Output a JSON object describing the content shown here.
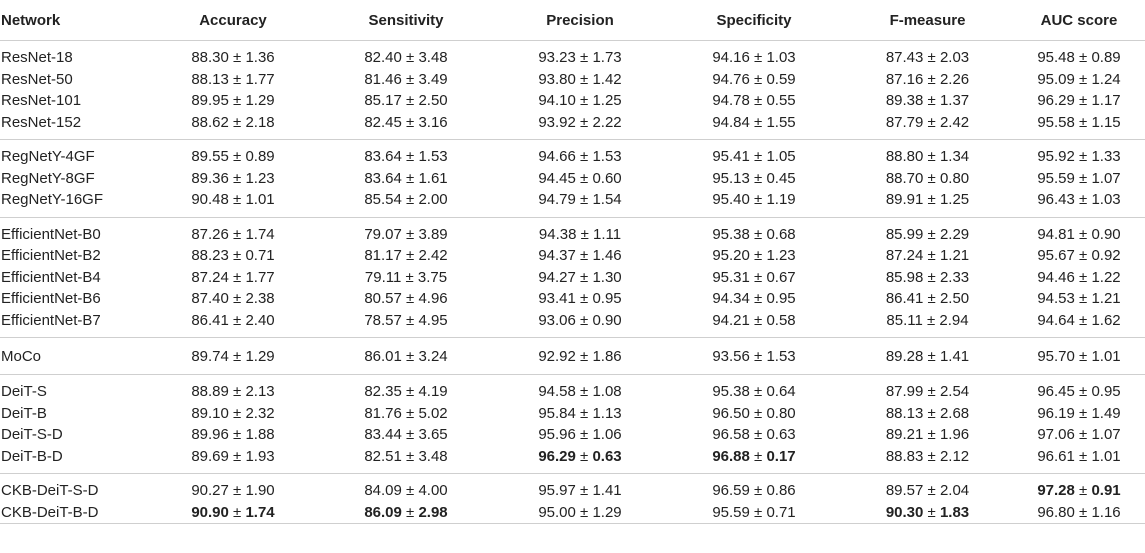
{
  "headers": [
    "Network",
    "Accuracy",
    "Sensitivity",
    "Precision",
    "Specificity",
    "F-measure",
    "AUC score"
  ],
  "groups": [
    {
      "rows": [
        {
          "name": "ResNet-18",
          "cells": [
            [
              "88.30",
              "1.36"
            ],
            [
              "82.40",
              "3.48"
            ],
            [
              "93.23",
              "1.73"
            ],
            [
              "94.16",
              "1.03"
            ],
            [
              "87.43",
              "2.03"
            ],
            [
              "95.48",
              "0.89"
            ]
          ]
        },
        {
          "name": "ResNet-50",
          "cells": [
            [
              "88.13",
              "1.77"
            ],
            [
              "81.46",
              "3.49"
            ],
            [
              "93.80",
              "1.42"
            ],
            [
              "94.76",
              "0.59"
            ],
            [
              "87.16",
              "2.26"
            ],
            [
              "95.09",
              "1.24"
            ]
          ]
        },
        {
          "name": "ResNet-101",
          "cells": [
            [
              "89.95",
              "1.29"
            ],
            [
              "85.17",
              "2.50"
            ],
            [
              "94.10",
              "1.25"
            ],
            [
              "94.78",
              "0.55"
            ],
            [
              "89.38",
              "1.37"
            ],
            [
              "96.29",
              "1.17"
            ]
          ]
        },
        {
          "name": "ResNet-152",
          "cells": [
            [
              "88.62",
              "2.18"
            ],
            [
              "82.45",
              "3.16"
            ],
            [
              "93.92",
              "2.22"
            ],
            [
              "94.84",
              "1.55"
            ],
            [
              "87.79",
              "2.42"
            ],
            [
              "95.58",
              "1.15"
            ]
          ]
        }
      ]
    },
    {
      "rows": [
        {
          "name": "RegNetY-4GF",
          "cells": [
            [
              "89.55",
              "0.89"
            ],
            [
              "83.64",
              "1.53"
            ],
            [
              "94.66",
              "1.53"
            ],
            [
              "95.41",
              "1.05"
            ],
            [
              "88.80",
              "1.34"
            ],
            [
              "95.92",
              "1.33"
            ]
          ]
        },
        {
          "name": "RegNetY-8GF",
          "cells": [
            [
              "89.36",
              "1.23"
            ],
            [
              "83.64",
              "1.61"
            ],
            [
              "94.45",
              "0.60"
            ],
            [
              "95.13",
              "0.45"
            ],
            [
              "88.70",
              "0.80"
            ],
            [
              "95.59",
              "1.07"
            ]
          ]
        },
        {
          "name": "RegNetY-16GF",
          "cells": [
            [
              "90.48",
              "1.01"
            ],
            [
              "85.54",
              "2.00"
            ],
            [
              "94.79",
              "1.54"
            ],
            [
              "95.40",
              "1.19"
            ],
            [
              "89.91",
              "1.25"
            ],
            [
              "96.43",
              "1.03"
            ]
          ]
        }
      ]
    },
    {
      "rows": [
        {
          "name": "EfficientNet-B0",
          "cells": [
            [
              "87.26",
              "1.74"
            ],
            [
              "79.07",
              "3.89"
            ],
            [
              "94.38",
              "1.11"
            ],
            [
              "95.38",
              "0.68"
            ],
            [
              "85.99",
              "2.29"
            ],
            [
              "94.81",
              "0.90"
            ]
          ]
        },
        {
          "name": "EfficientNet-B2",
          "cells": [
            [
              "88.23",
              "0.71"
            ],
            [
              "81.17",
              "2.42"
            ],
            [
              "94.37",
              "1.46"
            ],
            [
              "95.20",
              "1.23"
            ],
            [
              "87.24",
              "1.21"
            ],
            [
              "95.67",
              "0.92"
            ]
          ]
        },
        {
          "name": "EfficientNet-B4",
          "cells": [
            [
              "87.24",
              "1.77"
            ],
            [
              "79.11",
              "3.75"
            ],
            [
              "94.27",
              "1.30"
            ],
            [
              "95.31",
              "0.67"
            ],
            [
              "85.98",
              "2.33"
            ],
            [
              "94.46",
              "1.22"
            ]
          ]
        },
        {
          "name": "EfficientNet-B6",
          "cells": [
            [
              "87.40",
              "2.38"
            ],
            [
              "80.57",
              "4.96"
            ],
            [
              "93.41",
              "0.95"
            ],
            [
              "94.34",
              "0.95"
            ],
            [
              "86.41",
              "2.50"
            ],
            [
              "94.53",
              "1.21"
            ]
          ]
        },
        {
          "name": "EfficientNet-B7",
          "cells": [
            [
              "86.41",
              "2.40"
            ],
            [
              "78.57",
              "4.95"
            ],
            [
              "93.06",
              "0.90"
            ],
            [
              "94.21",
              "0.58"
            ],
            [
              "85.11",
              "2.94"
            ],
            [
              "94.64",
              "1.62"
            ]
          ]
        }
      ]
    },
    {
      "rows": [
        {
          "name": "MoCo",
          "cells": [
            [
              "89.74",
              "1.29"
            ],
            [
              "86.01",
              "3.24"
            ],
            [
              "92.92",
              "1.86"
            ],
            [
              "93.56",
              "1.53"
            ],
            [
              "89.28",
              "1.41"
            ],
            [
              "95.70",
              "1.01"
            ]
          ]
        }
      ]
    },
    {
      "rows": [
        {
          "name": "DeiT-S",
          "cells": [
            [
              "88.89",
              "2.13"
            ],
            [
              "82.35",
              "4.19"
            ],
            [
              "94.58",
              "1.08"
            ],
            [
              "95.38",
              "0.64"
            ],
            [
              "87.99",
              "2.54"
            ],
            [
              "96.45",
              "0.95"
            ]
          ]
        },
        {
          "name": "DeiT-B",
          "cells": [
            [
              "89.10",
              "2.32"
            ],
            [
              "81.76",
              "5.02"
            ],
            [
              "95.84",
              "1.13"
            ],
            [
              "96.50",
              "0.80"
            ],
            [
              "88.13",
              "2.68"
            ],
            [
              "96.19",
              "1.49"
            ]
          ]
        },
        {
          "name": "DeiT-S-D",
          "cells": [
            [
              "89.96",
              "1.88"
            ],
            [
              "83.44",
              "3.65"
            ],
            [
              "95.96",
              "1.06"
            ],
            [
              "96.58",
              "0.63"
            ],
            [
              "89.21",
              "1.96"
            ],
            [
              "97.06",
              "1.07"
            ]
          ]
        },
        {
          "name": "DeiT-B-D",
          "cells": [
            [
              "89.69",
              "1.93"
            ],
            [
              "82.51",
              "3.48"
            ],
            [
              "96.29",
              "0.63",
              true
            ],
            [
              "96.88",
              "0.17",
              true
            ],
            [
              "88.83",
              "2.12"
            ],
            [
              "96.61",
              "1.01"
            ]
          ]
        }
      ]
    },
    {
      "rows": [
        {
          "name": "CKB-DeiT-S-D",
          "cells": [
            [
              "90.27",
              "1.90"
            ],
            [
              "84.09",
              "4.00"
            ],
            [
              "95.97",
              "1.41"
            ],
            [
              "96.59",
              "0.86"
            ],
            [
              "89.57",
              "2.04"
            ],
            [
              "97.28",
              "0.91",
              true
            ]
          ]
        },
        {
          "name": "CKB-DeiT-B-D",
          "cells": [
            [
              "90.90",
              "1.74",
              true
            ],
            [
              "86.09",
              "2.98",
              true
            ],
            [
              "95.00",
              "1.29"
            ],
            [
              "95.59",
              "0.71"
            ],
            [
              "90.30",
              "1.83",
              true
            ],
            [
              "96.80",
              "1.16"
            ]
          ]
        }
      ]
    }
  ]
}
